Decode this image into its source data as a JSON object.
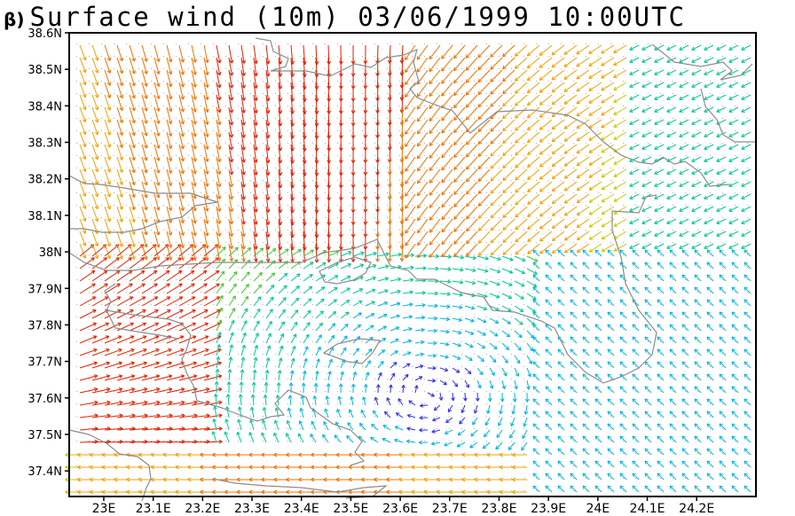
{
  "title": {
    "panel_label": "β)",
    "text": "Surface wind (10m) 03/06/1999 10:00UTC"
  },
  "map": {
    "lon_range": [
      22.93,
      24.32
    ],
    "lat_range": [
      37.33,
      38.6
    ],
    "x_tick_labels": [
      "23E",
      "23.1E",
      "23.2E",
      "23.3E",
      "23.4E",
      "23.5E",
      "23.6E",
      "23.7E",
      "23.8E",
      "23.9E",
      "24E",
      "24.1E",
      "24.2E"
    ],
    "y_tick_labels": [
      "37.4N",
      "37.5N",
      "37.6N",
      "37.7N",
      "37.8N",
      "37.9N",
      "38N",
      "38.1N",
      "38.2N",
      "38.3N",
      "38.4N",
      "38.5N",
      "38.6N"
    ],
    "colors": {
      "frame": "#000000",
      "coastline": "#8c8c8c",
      "grid_dots": "#b0b0b0",
      "speed_scale": [
        "#7a00c8",
        "#3030e0",
        "#00b4e0",
        "#00c890",
        "#40c830",
        "#c8c800",
        "#f0a000",
        "#f07000",
        "#e02000"
      ]
    }
  }
}
